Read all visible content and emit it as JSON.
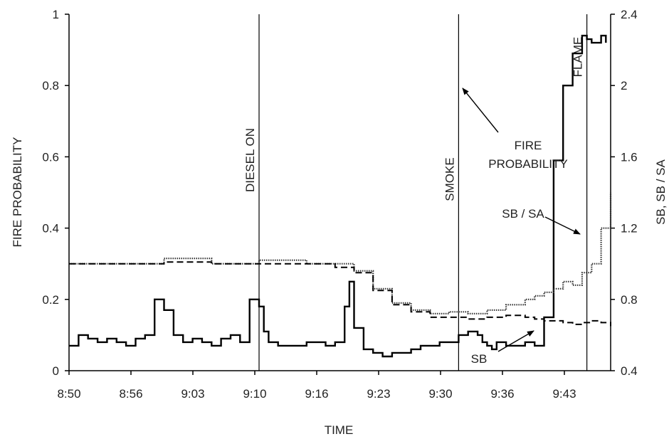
{
  "chart_data": {
    "type": "line",
    "xlabel": "TIME",
    "ylabel": "FIRE PROBABILITY",
    "y2label": "SB, SB / SA",
    "x_ticks": [
      "8:50",
      "8:56",
      "9:03",
      "9:10",
      "9:16",
      "9:23",
      "9:30",
      "9:36",
      "9:43"
    ],
    "x_range_minutes": [
      0,
      57
    ],
    "ylim": [
      0,
      1
    ],
    "y_ticks": [
      "0",
      "0.2",
      "0.4",
      "0.6",
      "0.8",
      "1"
    ],
    "y2lim": [
      0.4,
      2.4
    ],
    "y2_ticks": [
      "0.4",
      "0.8",
      "1.2",
      "1.6",
      "2",
      "2.4"
    ],
    "grid": false,
    "legend": "none",
    "events": [
      {
        "label": "DIESEL ON",
        "x": 20
      },
      {
        "label": "SMOKE",
        "x": 41
      },
      {
        "label": "FLAME",
        "x": 54.5
      }
    ],
    "annotations": [
      {
        "lines": [
          "FIRE",
          "PROBABILITY"
        ],
        "points_to_series": "fire-probability"
      },
      {
        "lines": [
          "SB / SA"
        ],
        "points_to_series": "sb-sa"
      },
      {
        "lines": [
          "SB"
        ],
        "points_to_series": "sb"
      }
    ],
    "series": [
      {
        "name": "FIRE PROBABILITY",
        "axis": "left",
        "style": "solid",
        "x": [
          0,
          1,
          2,
          3,
          4,
          5,
          6,
          7,
          8,
          9,
          10,
          11,
          12,
          13,
          14,
          15,
          16,
          17,
          18,
          19,
          20,
          20.5,
          21,
          22,
          23,
          24,
          25,
          26,
          27,
          28,
          29,
          29.5,
          30,
          31,
          32,
          33,
          34,
          35,
          36,
          37,
          38,
          39,
          40,
          41,
          42,
          43,
          43.5,
          44,
          44.5,
          45,
          46,
          47,
          48,
          48.5,
          49,
          49.5,
          50,
          51,
          52,
          53,
          54,
          54.5,
          55,
          56,
          56.5
        ],
        "values": [
          0.07,
          0.1,
          0.09,
          0.08,
          0.09,
          0.08,
          0.07,
          0.09,
          0.1,
          0.2,
          0.17,
          0.1,
          0.08,
          0.09,
          0.08,
          0.07,
          0.09,
          0.1,
          0.08,
          0.2,
          0.18,
          0.11,
          0.08,
          0.07,
          0.07,
          0.07,
          0.08,
          0.08,
          0.07,
          0.08,
          0.18,
          0.25,
          0.12,
          0.06,
          0.05,
          0.04,
          0.05,
          0.05,
          0.06,
          0.07,
          0.07,
          0.08,
          0.08,
          0.1,
          0.11,
          0.1,
          0.08,
          0.07,
          0.06,
          0.08,
          0.07,
          0.07,
          0.08,
          0.08,
          0.07,
          0.07,
          0.15,
          0.59,
          0.8,
          0.89,
          0.94,
          0.93,
          0.92,
          0.94,
          0.92
        ]
      },
      {
        "name": "SB / SA",
        "axis": "right",
        "style": "dotted",
        "x": [
          0,
          5,
          10,
          15,
          20,
          25,
          28,
          30,
          32,
          34,
          36,
          38,
          40,
          42,
          44,
          46,
          48,
          49,
          50,
          51,
          52,
          53,
          54,
          55,
          56,
          57
        ],
        "values": [
          1.0,
          1.0,
          1.03,
          1.0,
          1.02,
          1.0,
          1.0,
          0.96,
          0.86,
          0.78,
          0.74,
          0.72,
          0.73,
          0.72,
          0.74,
          0.77,
          0.8,
          0.82,
          0.84,
          0.86,
          0.9,
          0.88,
          0.95,
          1.0,
          1.2,
          1.4
        ]
      },
      {
        "name": "SB",
        "axis": "right",
        "style": "dashed",
        "x": [
          0,
          5,
          10,
          15,
          20,
          25,
          28,
          30,
          32,
          34,
          36,
          38,
          40,
          42,
          44,
          46,
          48,
          49,
          50,
          51,
          52,
          53,
          54,
          55,
          56,
          57
        ],
        "values": [
          1.0,
          1.0,
          1.01,
          1.0,
          1.0,
          1.0,
          0.98,
          0.95,
          0.85,
          0.77,
          0.73,
          0.7,
          0.7,
          0.69,
          0.7,
          0.71,
          0.7,
          0.69,
          0.68,
          0.68,
          0.67,
          0.66,
          0.67,
          0.68,
          0.67,
          0.65
        ]
      }
    ]
  }
}
